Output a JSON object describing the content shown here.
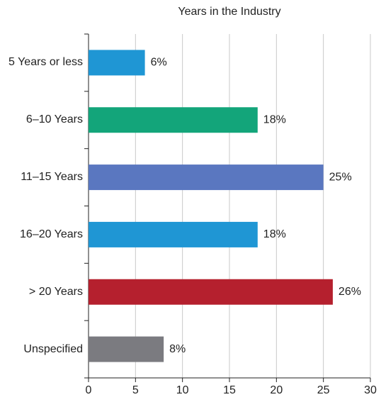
{
  "chart_data": {
    "type": "bar",
    "orientation": "horizontal",
    "title": "Years in the Industry",
    "categories": [
      "5 Years or less",
      "6–10 Years",
      "11–15 Years",
      "16–20 Years",
      "> 20 Years",
      "Unspecified"
    ],
    "values": [
      6,
      18,
      25,
      18,
      26,
      8
    ],
    "value_labels": [
      "6%",
      "18%",
      "25%",
      "18%",
      "26%",
      "8%"
    ],
    "colors": [
      "#1f96d4",
      "#13a57a",
      "#5a77c0",
      "#1f96d4",
      "#b5202e",
      "#7b7b80"
    ],
    "xlim": [
      0,
      30
    ],
    "xticks": [
      0,
      5,
      10,
      15,
      20,
      25,
      30
    ],
    "grid": true
  }
}
